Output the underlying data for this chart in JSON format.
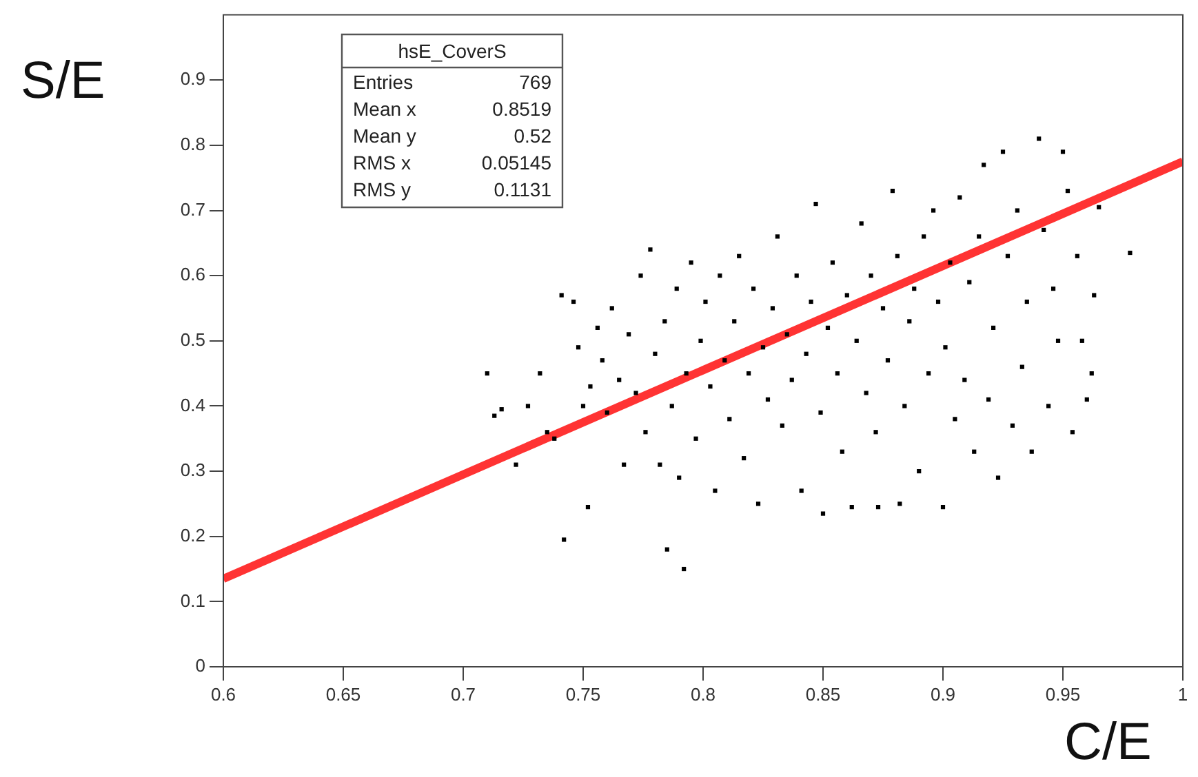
{
  "chart_data": {
    "type": "scatter",
    "title": "hsE_CoverS",
    "xlabel": "C/E",
    "ylabel": "S/E",
    "annotations": [
      "Entries 769",
      "Mean x 0.8519",
      "Mean y 0.52",
      "RMS x 0.05145",
      "RMS y 0.1131"
    ],
    "xlim": [
      0.6,
      1
    ],
    "ylim": [
      0,
      1
    ],
    "xticks": [
      0.6,
      0.65,
      0.7,
      0.75,
      0.8,
      0.85,
      0.9,
      0.95,
      1
    ],
    "yticks": [
      0,
      0.1,
      0.2,
      0.3,
      0.4,
      0.5,
      0.6,
      0.7,
      0.8,
      0.9
    ],
    "grid": false,
    "legend": false,
    "series": [
      {
        "color": "#000000",
        "marker": "square",
        "x": [
          0.71,
          0.713,
          0.716,
          0.722,
          0.727,
          0.732,
          0.735,
          0.738,
          0.741,
          0.742,
          0.746,
          0.748,
          0.75,
          0.752,
          0.753,
          0.756,
          0.758,
          0.76,
          0.762,
          0.765,
          0.767,
          0.769,
          0.772,
          0.774,
          0.776,
          0.778,
          0.78,
          0.782,
          0.784,
          0.785,
          0.787,
          0.789,
          0.79,
          0.792,
          0.793,
          0.795,
          0.797,
          0.799,
          0.801,
          0.803,
          0.805,
          0.807,
          0.809,
          0.811,
          0.813,
          0.815,
          0.817,
          0.819,
          0.821,
          0.823,
          0.825,
          0.827,
          0.829,
          0.831,
          0.833,
          0.835,
          0.837,
          0.839,
          0.841,
          0.843,
          0.845,
          0.847,
          0.849,
          0.85,
          0.852,
          0.854,
          0.856,
          0.858,
          0.86,
          0.862,
          0.864,
          0.866,
          0.868,
          0.87,
          0.872,
          0.873,
          0.875,
          0.877,
          0.879,
          0.881,
          0.882,
          0.884,
          0.886,
          0.888,
          0.89,
          0.892,
          0.894,
          0.896,
          0.898,
          0.9,
          0.901,
          0.903,
          0.905,
          0.907,
          0.909,
          0.911,
          0.913,
          0.915,
          0.917,
          0.919,
          0.921,
          0.923,
          0.925,
          0.927,
          0.929,
          0.931,
          0.933,
          0.935,
          0.937,
          0.94,
          0.942,
          0.944,
          0.946,
          0.948,
          0.95,
          0.952,
          0.954,
          0.956,
          0.958,
          0.96,
          0.962,
          0.963,
          0.965,
          0.978
        ],
        "values": [
          0.45,
          0.385,
          0.395,
          0.31,
          0.4,
          0.45,
          0.36,
          0.35,
          0.57,
          0.195,
          0.56,
          0.49,
          0.4,
          0.245,
          0.43,
          0.52,
          0.47,
          0.39,
          0.55,
          0.44,
          0.31,
          0.51,
          0.42,
          0.6,
          0.36,
          0.64,
          0.48,
          0.31,
          0.53,
          0.18,
          0.4,
          0.58,
          0.29,
          0.15,
          0.45,
          0.62,
          0.35,
          0.5,
          0.56,
          0.43,
          0.27,
          0.6,
          0.47,
          0.38,
          0.53,
          0.63,
          0.32,
          0.45,
          0.58,
          0.25,
          0.49,
          0.41,
          0.55,
          0.66,
          0.37,
          0.51,
          0.44,
          0.6,
          0.27,
          0.48,
          0.56,
          0.71,
          0.39,
          0.235,
          0.52,
          0.62,
          0.45,
          0.33,
          0.57,
          0.245,
          0.5,
          0.68,
          0.42,
          0.6,
          0.36,
          0.245,
          0.55,
          0.47,
          0.73,
          0.63,
          0.25,
          0.4,
          0.53,
          0.58,
          0.3,
          0.66,
          0.45,
          0.7,
          0.56,
          0.245,
          0.49,
          0.62,
          0.38,
          0.72,
          0.44,
          0.59,
          0.33,
          0.66,
          0.77,
          0.41,
          0.52,
          0.29,
          0.79,
          0.63,
          0.37,
          0.7,
          0.46,
          0.56,
          0.33,
          0.81,
          0.67,
          0.4,
          0.58,
          0.5,
          0.79,
          0.73,
          0.36,
          0.63,
          0.5,
          0.41,
          0.45,
          0.57,
          0.705,
          0.635
        ]
      },
      {
        "type": "line",
        "color": "#ff3333",
        "line_style": "solid",
        "x": [
          0.6,
          1
        ],
        "values": [
          0.135,
          0.775
        ]
      }
    ]
  }
}
